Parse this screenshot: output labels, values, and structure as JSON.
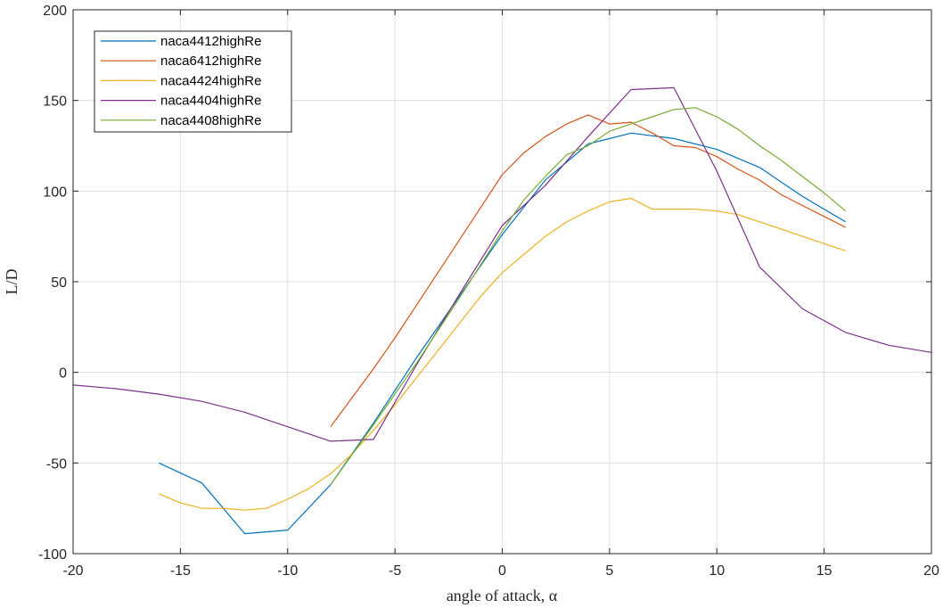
{
  "chart_data": {
    "type": "line",
    "xlabel": "angle of attack, α",
    "ylabel": "L/D",
    "xlim": [
      -20,
      20
    ],
    "ylim": [
      -100,
      200
    ],
    "xticks": [
      -20,
      -15,
      -10,
      -5,
      0,
      5,
      10,
      15,
      20
    ],
    "yticks": [
      -100,
      -50,
      0,
      50,
      100,
      150,
      200
    ],
    "xtick_labels": [
      "-20",
      "-15",
      "-10",
      "-5",
      "0",
      "5",
      "10",
      "15",
      "20"
    ],
    "ytick_labels": [
      "-100",
      "-50",
      "0",
      "50",
      "100",
      "150",
      "200"
    ],
    "grid": true,
    "legend_position": "top-left",
    "series": [
      {
        "name": "naca4412highRe",
        "color": "#0072BD",
        "x": [
          -16,
          -14,
          -12,
          -10,
          -8,
          -6,
          -4,
          -2,
          0,
          2,
          4,
          6,
          8,
          10,
          12,
          14,
          16
        ],
        "y": [
          -50,
          -61,
          -89,
          -87,
          -62,
          -28,
          8,
          42,
          76,
          106,
          126,
          132,
          129,
          123,
          113,
          97,
          83
        ]
      },
      {
        "name": "naca6412highRe",
        "color": "#D95319",
        "x": [
          -8,
          -7,
          -6,
          -5,
          -4,
          -3,
          -2,
          -1,
          0,
          1,
          2,
          3,
          4,
          5,
          6,
          7,
          8,
          9,
          10,
          11,
          12,
          13,
          14,
          15,
          16
        ],
        "y": [
          -30,
          -14,
          2,
          19,
          37,
          55,
          73,
          91,
          109,
          121,
          130,
          137,
          142,
          137,
          138,
          132,
          125,
          124,
          119,
          112,
          106,
          98,
          92,
          86,
          80
        ]
      },
      {
        "name": "naca4424highRe",
        "color": "#EDB120",
        "x": [
          -16,
          -15,
          -14,
          -13,
          -12,
          -11,
          -10,
          -9,
          -8,
          -7,
          -6,
          -5,
          -4,
          -3,
          -2,
          -1,
          0,
          1,
          2,
          3,
          4,
          5,
          6,
          7,
          8,
          9,
          10,
          11,
          12,
          13,
          14,
          15,
          16
        ],
        "y": [
          -67,
          -72,
          -75,
          -75,
          -76,
          -75,
          -70,
          -64,
          -56,
          -45,
          -32,
          -18,
          -3,
          12,
          27,
          42,
          55,
          65,
          75,
          83,
          89,
          94,
          96,
          90,
          90,
          90,
          89,
          87,
          83,
          79,
          75,
          71,
          67
        ]
      },
      {
        "name": "naca4404highRe",
        "color": "#7E2F8E",
        "x": [
          -20,
          -18,
          -16,
          -14,
          -12,
          -10,
          -8,
          -6,
          -4,
          -2,
          0,
          2,
          4,
          6,
          8,
          10,
          12,
          14,
          16,
          18,
          20
        ],
        "y": [
          -7,
          -9,
          -12,
          -16,
          -22,
          -30,
          -38,
          -37,
          4,
          43,
          81,
          103,
          130,
          156,
          157,
          111,
          58,
          35,
          22,
          15,
          11
        ]
      },
      {
        "name": "naca4408highRe",
        "color": "#77AC30",
        "x": [
          -8,
          -6,
          -4,
          -2,
          0,
          1,
          2,
          3,
          4,
          5,
          6,
          7,
          8,
          9,
          10,
          11,
          12,
          13,
          14,
          15,
          16
        ],
        "y": [
          -62,
          -29,
          5,
          41,
          78,
          95,
          108,
          120,
          125,
          133,
          137,
          141,
          145,
          146,
          141,
          134,
          125,
          117,
          108,
          99,
          89
        ]
      }
    ]
  }
}
